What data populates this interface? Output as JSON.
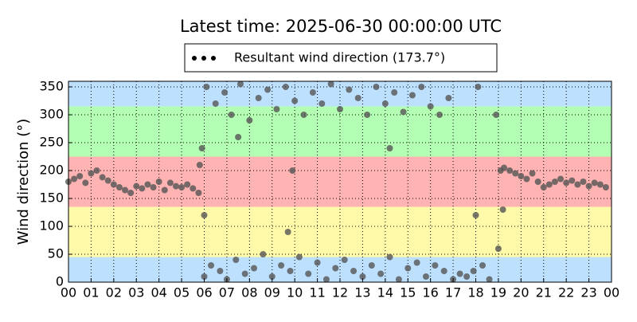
{
  "chart_data": {
    "type": "scatter",
    "title": "Latest time: 2025-06-30 00:00:00 UTC",
    "ylabel": "Wind direction (°)",
    "xlim": [
      0,
      24
    ],
    "ylim": [
      0,
      360
    ],
    "xticks": [
      {
        "value": 0,
        "label": "00"
      },
      {
        "value": 1,
        "label": "01"
      },
      {
        "value": 2,
        "label": "02"
      },
      {
        "value": 3,
        "label": "03"
      },
      {
        "value": 4,
        "label": "04"
      },
      {
        "value": 5,
        "label": "05"
      },
      {
        "value": 6,
        "label": "06"
      },
      {
        "value": 7,
        "label": "07"
      },
      {
        "value": 8,
        "label": "08"
      },
      {
        "value": 9,
        "label": "09"
      },
      {
        "value": 10,
        "label": "10"
      },
      {
        "value": 11,
        "label": "11"
      },
      {
        "value": 12,
        "label": "12"
      },
      {
        "value": 13,
        "label": "13"
      },
      {
        "value": 14,
        "label": "14"
      },
      {
        "value": 15,
        "label": "15"
      },
      {
        "value": 16,
        "label": "16"
      },
      {
        "value": 17,
        "label": "17"
      },
      {
        "value": 18,
        "label": "18"
      },
      {
        "value": 19,
        "label": "19"
      },
      {
        "value": 20,
        "label": "20"
      },
      {
        "value": 21,
        "label": "21"
      },
      {
        "value": 22,
        "label": "22"
      },
      {
        "value": 23,
        "label": "23"
      },
      {
        "value": 24,
        "label": "00"
      }
    ],
    "yticks": [
      0,
      50,
      100,
      150,
      200,
      250,
      300,
      350
    ],
    "grid": true,
    "bands": [
      {
        "from": 0,
        "to": 45,
        "color": "#bde0ff"
      },
      {
        "from": 45,
        "to": 135,
        "color": "#fffaaa"
      },
      {
        "from": 135,
        "to": 225,
        "color": "#ffb3b3"
      },
      {
        "from": 225,
        "to": 315,
        "color": "#b3ffb3"
      },
      {
        "from": 315,
        "to": 360,
        "color": "#bde0ff"
      }
    ],
    "legend_position": "top",
    "series": [
      {
        "name": "Resultant wind direction (173.7°)",
        "color": "#555555",
        "x": [
          0,
          0.25,
          0.5,
          0.75,
          1,
          1.25,
          1.5,
          1.75,
          2,
          2.25,
          2.5,
          2.75,
          3,
          3.25,
          3.5,
          3.75,
          4,
          4.25,
          4.5,
          4.75,
          5,
          5.25,
          5.5,
          5.75,
          6.0,
          6.1,
          6.3,
          6.5,
          6.7,
          6.9,
          7.0,
          7.2,
          7.4,
          7.6,
          7.8,
          8.0,
          8.2,
          8.4,
          8.6,
          8.8,
          9.0,
          9.2,
          9.4,
          9.6,
          9.8,
          10.0,
          10.2,
          10.4,
          10.6,
          10.8,
          11.0,
          11.2,
          11.4,
          11.6,
          11.8,
          12.0,
          12.2,
          12.4,
          12.6,
          12.8,
          13.0,
          13.2,
          13.4,
          13.6,
          13.8,
          14.0,
          14.2,
          14.4,
          14.6,
          14.8,
          15.0,
          15.2,
          15.4,
          15.6,
          15.8,
          16.0,
          16.2,
          16.4,
          16.6,
          16.8,
          17.0,
          17.3,
          17.6,
          17.9,
          18.1,
          18.3,
          18.6,
          18.9,
          19.0,
          19.1,
          5.9,
          6.0,
          5.8,
          14.2,
          7.5,
          9.9,
          9.7,
          18.0,
          19.2,
          19.25,
          19.5,
          19.75,
          20,
          20.25,
          20.5,
          20.75,
          21,
          21.25,
          21.5,
          21.75,
          22,
          22.25,
          22.5,
          22.75,
          23,
          23.25,
          23.5,
          23.75
        ],
        "values": [
          180,
          185,
          190,
          178,
          195,
          200,
          188,
          182,
          175,
          170,
          165,
          160,
          172,
          168,
          175,
          170,
          180,
          165,
          178,
          172,
          170,
          175,
          168,
          160,
          10,
          350,
          30,
          320,
          20,
          340,
          5,
          300,
          40,
          355,
          15,
          290,
          25,
          330,
          50,
          345,
          10,
          310,
          30,
          350,
          20,
          325,
          45,
          300,
          15,
          340,
          35,
          320,
          5,
          355,
          25,
          310,
          40,
          345,
          20,
          330,
          10,
          300,
          30,
          350,
          15,
          320,
          45,
          340,
          5,
          305,
          25,
          335,
          35,
          350,
          10,
          315,
          30,
          300,
          20,
          330,
          5,
          15,
          10,
          20,
          350,
          30,
          5,
          300,
          60,
          200,
          240,
          120,
          210,
          240,
          260,
          200,
          90,
          120,
          130,
          205,
          200,
          195,
          190,
          185,
          195,
          180,
          170,
          175,
          180,
          185,
          178,
          182,
          175,
          180,
          172,
          178,
          175,
          170
        ]
      }
    ]
  }
}
